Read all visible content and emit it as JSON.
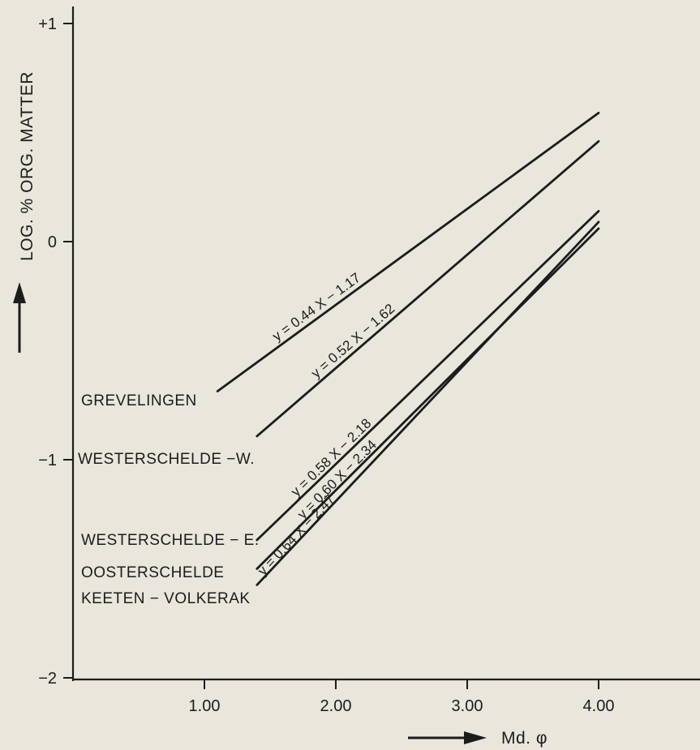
{
  "chart_data": {
    "type": "line",
    "xlabel": "Md. φ",
    "ylabel": "LOG. % ORG. MATTER",
    "xlim": [
      0.0,
      4.7
    ],
    "ylim": [
      -2,
      1
    ],
    "x_ticks": [
      {
        "value": 1.0,
        "label": "1.00"
      },
      {
        "value": 2.0,
        "label": "2.00"
      },
      {
        "value": 3.0,
        "label": "3.00"
      },
      {
        "value": 4.0,
        "label": "4.00"
      }
    ],
    "y_ticks": [
      {
        "value": 1,
        "label": "+1"
      },
      {
        "value": 0,
        "label": "0"
      },
      {
        "value": -1,
        "label": "−1"
      },
      {
        "value": -2,
        "label": "−2"
      }
    ],
    "grid": false,
    "series": [
      {
        "name": "GREVELINGEN",
        "equation": "y = 0.44 X − 1.17",
        "slope": 0.44,
        "intercept": -1.17,
        "x": [
          1.1,
          4.0
        ]
      },
      {
        "name": "WESTERSCHELDE −W.",
        "equation": "y = 0.52 X − 1.62",
        "slope": 0.52,
        "intercept": -1.62,
        "x": [
          1.4,
          4.0
        ]
      },
      {
        "name": "WESTERSCHELDE − E.",
        "equation": "y = 0.58 X − 2.18",
        "slope": 0.58,
        "intercept": -2.18,
        "x": [
          1.4,
          4.0
        ]
      },
      {
        "name": "OOSTERSCHELDE",
        "equation": "y = 0.60 X − 2.34",
        "slope": 0.6,
        "intercept": -2.34,
        "x": [
          1.4,
          4.0
        ]
      },
      {
        "name": "KEETEN − VOLKERAK",
        "equation": "y = 0.64 X − 2.47",
        "slope": 0.64,
        "intercept": -2.47,
        "x": [
          1.4,
          4.0
        ]
      }
    ]
  }
}
